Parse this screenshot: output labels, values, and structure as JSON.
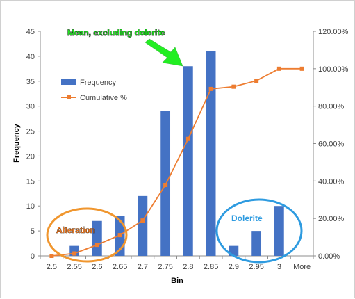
{
  "chart_data": {
    "type": "bar+line",
    "categories": [
      "2.5",
      "2.55",
      "2.6",
      "2.65",
      "2.7",
      "2.75",
      "2.8",
      "2.85",
      "2.9",
      "2.95",
      "3",
      "More"
    ],
    "series": [
      {
        "name": "Frequency",
        "type": "bar",
        "axis": "left",
        "color": "#4472C4",
        "values": [
          0,
          2,
          7,
          8,
          12,
          29,
          38,
          41,
          2,
          5,
          10,
          0
        ]
      },
      {
        "name": "Cumulative %",
        "type": "line",
        "axis": "right",
        "color": "#ED7D31",
        "values": [
          0.0,
          1.3,
          5.9,
          11.1,
          18.9,
          37.9,
          62.5,
          89.2,
          90.4,
          93.6,
          100.0,
          100.0
        ]
      }
    ],
    "xlabel": "Bin",
    "ylabel": "Frequency",
    "ylim": [
      0,
      45
    ],
    "yticks": [
      "0",
      "5",
      "10",
      "15",
      "20",
      "25",
      "30",
      "35",
      "40",
      "45"
    ],
    "y2lim": [
      0,
      120
    ],
    "y2ticks": [
      "0.00%",
      "20.00%",
      "40.00%",
      "60.00%",
      "80.00%",
      "100.00%",
      "120.00%"
    ],
    "legend": {
      "position": "left",
      "entries": [
        "Frequency",
        "Cumulative %"
      ]
    },
    "grid": false,
    "annotations": [
      {
        "text": "Mean, excluding dolerite",
        "color": "#00CC00"
      },
      {
        "text": "Alteration",
        "color": "#E87722"
      },
      {
        "text": "Dolerite",
        "color": "#2E9BE0"
      }
    ]
  }
}
